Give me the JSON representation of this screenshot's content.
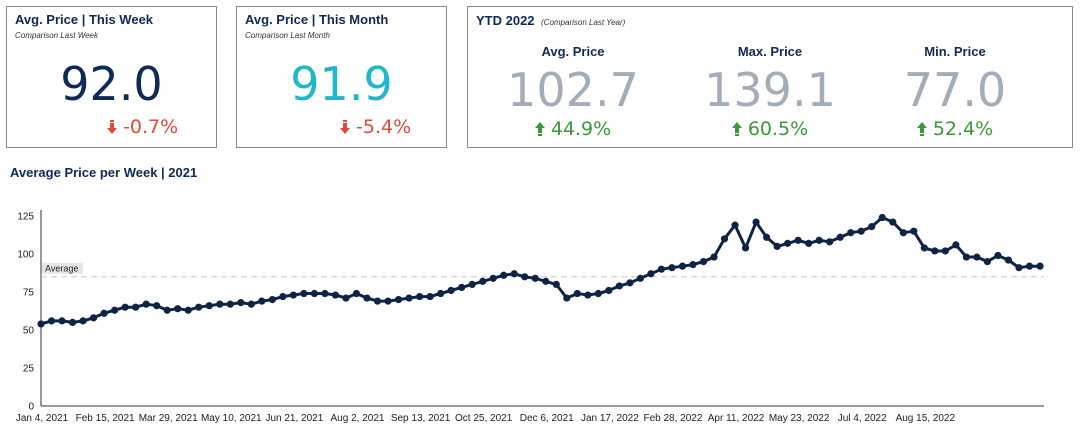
{
  "colors": {
    "navy": "#0f2a55",
    "teal": "#1fb8c8",
    "red": "#e04a3a",
    "green": "#3a9a3a",
    "gray_value": "#a3acb9",
    "line": "#0f2445"
  },
  "cards": {
    "week": {
      "title": "Avg. Price | This Week",
      "subtitle": "Comparison Last Week",
      "value": "92.0",
      "delta": "-0.7%",
      "delta_icon": "arrow-down-icon"
    },
    "month": {
      "title": "Avg. Price | This Month",
      "subtitle": "Comparison Last Month",
      "value": "91.9",
      "delta": "-5.4%",
      "delta_icon": "arrow-down-icon"
    },
    "ytd": {
      "title": "YTD 2022",
      "note": "(Comparison Last Year)",
      "metrics": [
        {
          "label": "Avg. Price",
          "value": "102.7",
          "delta": "44.9%",
          "delta_icon": "arrow-up-icon"
        },
        {
          "label": "Max. Price",
          "value": "139.1",
          "delta": "60.5%",
          "delta_icon": "arrow-up-icon"
        },
        {
          "label": "Min. Price",
          "value": "77.0",
          "delta": "52.4%",
          "delta_icon": "arrow-up-icon"
        }
      ]
    }
  },
  "chart_data": {
    "type": "line",
    "title": "Average Price per Week | 2021",
    "xlabel": "",
    "ylabel": "",
    "ylim": [
      0,
      125
    ],
    "y_ticks": [
      0,
      25,
      50,
      75,
      100,
      125
    ],
    "x_tick_labels": [
      "Jan 4, 2021",
      "Feb 15, 2021",
      "Mar 29, 2021",
      "May 10, 2021",
      "Jun 21, 2021",
      "Aug 2, 2021",
      "Sep 13, 2021",
      "Oct 25, 2021",
      "Dec 6, 2021",
      "Jan 17, 2022",
      "Feb 28, 2022",
      "Apr 11, 2022",
      "May 23, 2022",
      "Jul 4, 2022",
      "Aug 15, 2022"
    ],
    "x_tick_week_index": [
      0,
      6,
      12,
      18,
      24,
      30,
      36,
      42,
      48,
      54,
      60,
      66,
      72,
      78,
      84
    ],
    "grid": false,
    "reference_line": {
      "label": "Average",
      "value": 85,
      "style": "dashed"
    },
    "series": [
      {
        "values": [
          54,
          56,
          56,
          55,
          56,
          58,
          61,
          63,
          65,
          65,
          67,
          66,
          63,
          64,
          63,
          65,
          66,
          67,
          67,
          68,
          67,
          69,
          70,
          72,
          73,
          74,
          74,
          74,
          73,
          71,
          74,
          71,
          69,
          69,
          70,
          71,
          72,
          72,
          74,
          76,
          78,
          80,
          82,
          84,
          86,
          87,
          85,
          84,
          82,
          80,
          71,
          74,
          73,
          74,
          76,
          79,
          81,
          84,
          87,
          90,
          91,
          92,
          93,
          95,
          98,
          110,
          119,
          104,
          121,
          111,
          105,
          107,
          109,
          107,
          109,
          108,
          111,
          114,
          115,
          118,
          124,
          121,
          114,
          115,
          104,
          102,
          102,
          106,
          98,
          98,
          95,
          99,
          96,
          91,
          92,
          92
        ]
      }
    ]
  }
}
